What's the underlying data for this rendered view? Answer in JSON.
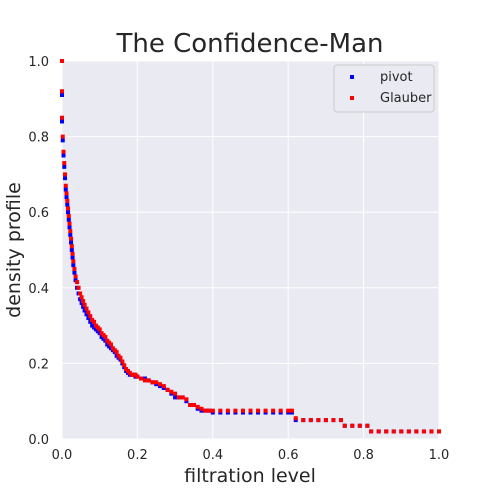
{
  "chart_data": {
    "type": "scatter",
    "title": "The Confidence-Man",
    "xlabel": "filtration level",
    "ylabel": "density profile",
    "xlim": [
      0.0,
      1.0
    ],
    "ylim": [
      0.0,
      1.0
    ],
    "xticks": [
      "0.0",
      "0.2",
      "0.4",
      "0.6",
      "0.8",
      "1.0"
    ],
    "yticks": [
      "0.0",
      "0.2",
      "0.4",
      "0.6",
      "0.8",
      "1.0"
    ],
    "grid": true,
    "legend_position": "top-right",
    "series": [
      {
        "name": "pivot",
        "color": "#0000ff",
        "points": [
          [
            0.0,
            1.0
          ],
          [
            0.0,
            0.91
          ],
          [
            0.0,
            0.84
          ],
          [
            0.002,
            0.79
          ],
          [
            0.004,
            0.75
          ],
          [
            0.006,
            0.72
          ],
          [
            0.008,
            0.69
          ],
          [
            0.01,
            0.66
          ],
          [
            0.012,
            0.64
          ],
          [
            0.014,
            0.62
          ],
          [
            0.016,
            0.6
          ],
          [
            0.018,
            0.58
          ],
          [
            0.02,
            0.56
          ],
          [
            0.022,
            0.54
          ],
          [
            0.024,
            0.52
          ],
          [
            0.026,
            0.5
          ],
          [
            0.028,
            0.48
          ],
          [
            0.03,
            0.46
          ],
          [
            0.033,
            0.44
          ],
          [
            0.036,
            0.42
          ],
          [
            0.04,
            0.4
          ],
          [
            0.044,
            0.385
          ],
          [
            0.048,
            0.37
          ],
          [
            0.052,
            0.36
          ],
          [
            0.056,
            0.35
          ],
          [
            0.06,
            0.34
          ],
          [
            0.065,
            0.33
          ],
          [
            0.07,
            0.32
          ],
          [
            0.075,
            0.31
          ],
          [
            0.08,
            0.3
          ],
          [
            0.085,
            0.295
          ],
          [
            0.09,
            0.29
          ],
          [
            0.095,
            0.285
          ],
          [
            0.1,
            0.28
          ],
          [
            0.105,
            0.27
          ],
          [
            0.11,
            0.265
          ],
          [
            0.115,
            0.26
          ],
          [
            0.12,
            0.25
          ],
          [
            0.125,
            0.245
          ],
          [
            0.13,
            0.24
          ],
          [
            0.135,
            0.235
          ],
          [
            0.14,
            0.23
          ],
          [
            0.145,
            0.22
          ],
          [
            0.15,
            0.215
          ],
          [
            0.155,
            0.21
          ],
          [
            0.16,
            0.2
          ],
          [
            0.165,
            0.19
          ],
          [
            0.17,
            0.18
          ],
          [
            0.175,
            0.175
          ],
          [
            0.18,
            0.17
          ],
          [
            0.185,
            0.17
          ],
          [
            0.19,
            0.17
          ],
          [
            0.195,
            0.165
          ],
          [
            0.2,
            0.165
          ],
          [
            0.21,
            0.16
          ],
          [
            0.22,
            0.16
          ],
          [
            0.23,
            0.155
          ],
          [
            0.24,
            0.15
          ],
          [
            0.25,
            0.145
          ],
          [
            0.26,
            0.14
          ],
          [
            0.27,
            0.135
          ],
          [
            0.28,
            0.13
          ],
          [
            0.29,
            0.12
          ],
          [
            0.3,
            0.11
          ],
          [
            0.31,
            0.11
          ],
          [
            0.32,
            0.11
          ],
          [
            0.33,
            0.1
          ],
          [
            0.34,
            0.09
          ],
          [
            0.35,
            0.09
          ],
          [
            0.36,
            0.08
          ],
          [
            0.37,
            0.075
          ],
          [
            0.38,
            0.075
          ],
          [
            0.39,
            0.075
          ],
          [
            0.4,
            0.07
          ],
          [
            0.42,
            0.07
          ],
          [
            0.44,
            0.07
          ],
          [
            0.46,
            0.07
          ],
          [
            0.48,
            0.07
          ],
          [
            0.5,
            0.07
          ],
          [
            0.52,
            0.07
          ],
          [
            0.54,
            0.07
          ],
          [
            0.56,
            0.07
          ],
          [
            0.58,
            0.07
          ],
          [
            0.6,
            0.07
          ],
          [
            0.61,
            0.07
          ],
          [
            0.62,
            0.05
          ],
          [
            0.64,
            0.05
          ],
          [
            0.66,
            0.05
          ],
          [
            0.68,
            0.05
          ],
          [
            0.7,
            0.05
          ],
          [
            0.72,
            0.05
          ],
          [
            0.74,
            0.05
          ],
          [
            0.75,
            0.035
          ],
          [
            0.77,
            0.035
          ],
          [
            0.79,
            0.035
          ],
          [
            0.81,
            0.035
          ],
          [
            0.82,
            0.02
          ],
          [
            0.84,
            0.02
          ],
          [
            0.86,
            0.02
          ],
          [
            0.88,
            0.02
          ],
          [
            0.9,
            0.02
          ],
          [
            0.92,
            0.02
          ],
          [
            0.94,
            0.02
          ],
          [
            0.96,
            0.02
          ],
          [
            0.98,
            0.02
          ],
          [
            1.0,
            0.02
          ]
        ]
      },
      {
        "name": "Glauber",
        "color": "#ff0000",
        "points": [
          [
            0.0,
            1.0
          ],
          [
            0.0,
            0.92
          ],
          [
            0.0,
            0.85
          ],
          [
            0.002,
            0.8
          ],
          [
            0.004,
            0.76
          ],
          [
            0.006,
            0.73
          ],
          [
            0.008,
            0.7
          ],
          [
            0.01,
            0.67
          ],
          [
            0.012,
            0.65
          ],
          [
            0.014,
            0.63
          ],
          [
            0.016,
            0.61
          ],
          [
            0.018,
            0.59
          ],
          [
            0.02,
            0.57
          ],
          [
            0.022,
            0.55
          ],
          [
            0.024,
            0.53
          ],
          [
            0.026,
            0.51
          ],
          [
            0.028,
            0.49
          ],
          [
            0.03,
            0.47
          ],
          [
            0.033,
            0.45
          ],
          [
            0.036,
            0.43
          ],
          [
            0.04,
            0.415
          ],
          [
            0.044,
            0.4
          ],
          [
            0.048,
            0.385
          ],
          [
            0.052,
            0.375
          ],
          [
            0.056,
            0.365
          ],
          [
            0.06,
            0.355
          ],
          [
            0.065,
            0.345
          ],
          [
            0.07,
            0.335
          ],
          [
            0.075,
            0.325
          ],
          [
            0.08,
            0.315
          ],
          [
            0.085,
            0.31
          ],
          [
            0.09,
            0.3
          ],
          [
            0.095,
            0.295
          ],
          [
            0.1,
            0.29
          ],
          [
            0.105,
            0.28
          ],
          [
            0.11,
            0.275
          ],
          [
            0.115,
            0.27
          ],
          [
            0.12,
            0.26
          ],
          [
            0.125,
            0.255
          ],
          [
            0.13,
            0.25
          ],
          [
            0.135,
            0.24
          ],
          [
            0.14,
            0.235
          ],
          [
            0.145,
            0.23
          ],
          [
            0.15,
            0.22
          ],
          [
            0.155,
            0.215
          ],
          [
            0.16,
            0.205
          ],
          [
            0.165,
            0.195
          ],
          [
            0.17,
            0.185
          ],
          [
            0.175,
            0.18
          ],
          [
            0.18,
            0.175
          ],
          [
            0.185,
            0.17
          ],
          [
            0.19,
            0.17
          ],
          [
            0.195,
            0.17
          ],
          [
            0.2,
            0.165
          ],
          [
            0.21,
            0.16
          ],
          [
            0.22,
            0.155
          ],
          [
            0.23,
            0.155
          ],
          [
            0.24,
            0.15
          ],
          [
            0.25,
            0.15
          ],
          [
            0.26,
            0.145
          ],
          [
            0.27,
            0.14
          ],
          [
            0.28,
            0.13
          ],
          [
            0.29,
            0.125
          ],
          [
            0.3,
            0.12
          ],
          [
            0.31,
            0.11
          ],
          [
            0.32,
            0.11
          ],
          [
            0.33,
            0.105
          ],
          [
            0.34,
            0.09
          ],
          [
            0.35,
            0.09
          ],
          [
            0.36,
            0.085
          ],
          [
            0.37,
            0.08
          ],
          [
            0.38,
            0.075
          ],
          [
            0.39,
            0.075
          ],
          [
            0.4,
            0.075
          ],
          [
            0.42,
            0.075
          ],
          [
            0.44,
            0.075
          ],
          [
            0.46,
            0.075
          ],
          [
            0.48,
            0.075
          ],
          [
            0.5,
            0.075
          ],
          [
            0.52,
            0.075
          ],
          [
            0.54,
            0.075
          ],
          [
            0.56,
            0.075
          ],
          [
            0.58,
            0.075
          ],
          [
            0.6,
            0.075
          ],
          [
            0.61,
            0.075
          ],
          [
            0.62,
            0.055
          ],
          [
            0.64,
            0.05
          ],
          [
            0.66,
            0.05
          ],
          [
            0.68,
            0.05
          ],
          [
            0.7,
            0.05
          ],
          [
            0.72,
            0.05
          ],
          [
            0.74,
            0.05
          ],
          [
            0.75,
            0.035
          ],
          [
            0.77,
            0.035
          ],
          [
            0.79,
            0.035
          ],
          [
            0.81,
            0.035
          ],
          [
            0.82,
            0.02
          ],
          [
            0.84,
            0.02
          ],
          [
            0.86,
            0.02
          ],
          [
            0.88,
            0.02
          ],
          [
            0.9,
            0.02
          ],
          [
            0.92,
            0.02
          ],
          [
            0.94,
            0.02
          ],
          [
            0.96,
            0.02
          ],
          [
            0.98,
            0.02
          ],
          [
            1.0,
            0.02
          ]
        ]
      }
    ]
  }
}
